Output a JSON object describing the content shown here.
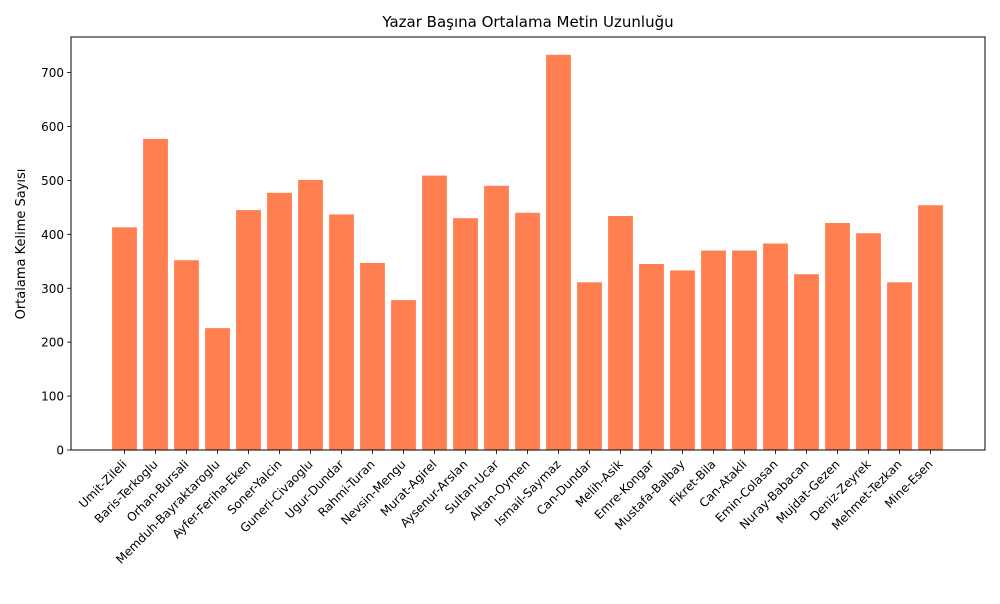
{
  "chart_data": {
    "type": "bar",
    "title": "Yazar Başına Ortalama Metin Uzunluğu",
    "xlabel": "",
    "ylabel": "Ortalama Kelime Sayısı",
    "ylim": [
      0,
      766
    ],
    "yticks": [
      0,
      100,
      200,
      300,
      400,
      500,
      600,
      700
    ],
    "bar_color": "#ff7f50",
    "grid": false,
    "categories": [
      "Umit-Zileli",
      "Baris-Terkoglu",
      "Orhan-Bursali",
      "Memduh-Bayraktaroglu",
      "Ayfer-Feriha-Eken",
      "Soner-Yalcin",
      "Guneri-Civaoglu",
      "Ugur-Dundar",
      "Rahmi-Turan",
      "Nevsin-Mengu",
      "Murat-Agirel",
      "Aysenur-Arslan",
      "Sultan-Ucar",
      "Altan-Oymen",
      "Ismail-Saymaz",
      "Can-Dundar",
      "Melih-Asik",
      "Emre-Kongar",
      "Mustafa-Balbay",
      "Fikret-Bila",
      "Can-Atakli",
      "Emin-Colasan",
      "Nuray-Babacan",
      "Mujdat-Gezen",
      "Deniz-Zeyrek",
      "Mehmet-Tezkan",
      "Mine-Esen"
    ],
    "values": [
      413,
      577,
      352,
      226,
      445,
      477,
      501,
      437,
      347,
      278,
      509,
      430,
      490,
      440,
      733,
      311,
      434,
      345,
      333,
      370,
      370,
      383,
      326,
      421,
      402,
      311,
      454
    ]
  }
}
